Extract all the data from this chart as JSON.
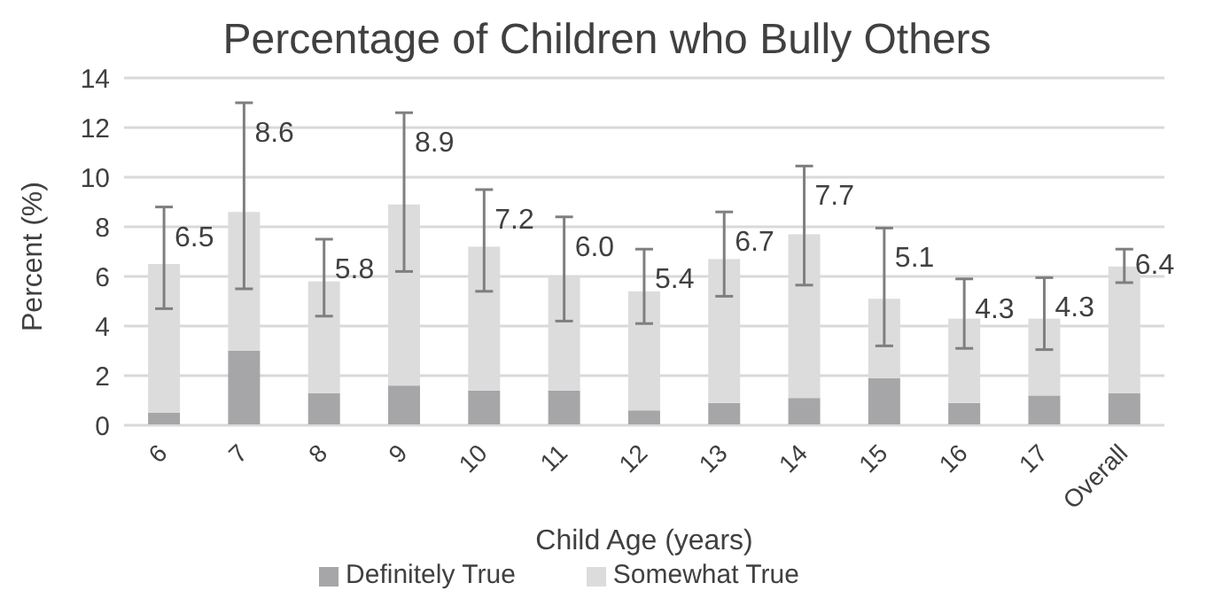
{
  "chart_data": {
    "type": "bar",
    "title": "Percentage of Children who Bully Others",
    "xlabel": "Child Age (years)",
    "ylabel": "Percent (%)",
    "categories": [
      "6",
      "7",
      "8",
      "9",
      "10",
      "11",
      "12",
      "13",
      "14",
      "15",
      "16",
      "17",
      "Overall"
    ],
    "stacked": true,
    "series": [
      {
        "name": "Definitely True",
        "color": "#a6a6a8",
        "values": [
          0.5,
          3.0,
          1.3,
          1.6,
          1.4,
          1.4,
          0.6,
          0.9,
          1.1,
          1.9,
          0.9,
          1.2,
          1.3
        ]
      },
      {
        "name": "Somewhat True",
        "color": "#dcdcdc",
        "values": [
          6.0,
          5.6,
          4.5,
          7.3,
          5.8,
          4.6,
          4.8,
          5.8,
          6.6,
          3.2,
          3.4,
          3.1,
          5.1
        ],
        "errors": [
          [
            4.7,
            8.8
          ],
          [
            5.5,
            13.0
          ],
          [
            4.4,
            7.5
          ],
          [
            6.2,
            12.6
          ],
          [
            5.4,
            9.5
          ],
          [
            4.2,
            8.4
          ],
          [
            4.1,
            7.1
          ],
          [
            5.2,
            8.6
          ],
          [
            5.65,
            10.45
          ],
          [
            3.2,
            7.95
          ],
          [
            3.1,
            5.9
          ],
          [
            3.05,
            5.95
          ],
          [
            5.75,
            7.1
          ]
        ]
      }
    ],
    "totals": [
      "6.5",
      "8.6",
      "5.8",
      "8.9",
      "7.2",
      "6.0",
      "5.4",
      "6.7",
      "7.7",
      "5.1",
      "4.3",
      "4.3",
      "6.4"
    ],
    "ylim": [
      0,
      14
    ],
    "yticks": [
      0,
      2,
      4,
      6,
      8,
      10,
      12,
      14
    ],
    "grid": "y",
    "legend": "bottom"
  }
}
